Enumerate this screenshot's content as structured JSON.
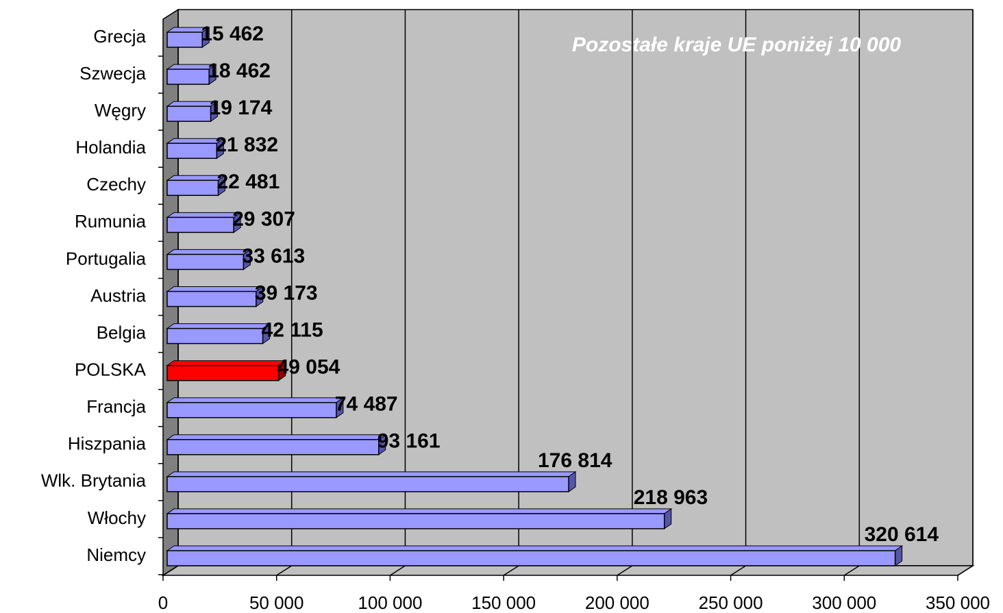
{
  "chart_data": {
    "type": "bar",
    "orientation": "horizontal",
    "annotation": "Pozostałe kraje UE poniżej 10 000",
    "categories": [
      "Grecja",
      "Szwecja",
      "Węgry",
      "Holandia",
      "Czechy",
      "Rumunia",
      "Portugalia",
      "Austria",
      "Belgia",
      "POLSKA",
      "Francja",
      "Hiszpania",
      "Wlk. Brytania",
      "Włochy",
      "Niemcy"
    ],
    "values": [
      15462,
      18462,
      19174,
      21832,
      22481,
      29307,
      33613,
      39173,
      42115,
      49054,
      74487,
      93161,
      176814,
      218963,
      320614
    ],
    "value_labels": [
      "15 462",
      "18 462",
      "19 174",
      "21 832",
      "22 481",
      "29 307",
      "33 613",
      "39 173",
      "42 115",
      "49 054",
      "74 487",
      "93 161",
      "176 814",
      "218 963",
      "320 614"
    ],
    "colors": [
      "#9999ff",
      "#9999ff",
      "#9999ff",
      "#9999ff",
      "#9999ff",
      "#9999ff",
      "#9999ff",
      "#9999ff",
      "#9999ff",
      "#ff0000",
      "#9999ff",
      "#9999ff",
      "#9999ff",
      "#9999ff",
      "#9999ff"
    ],
    "xlim": [
      0,
      350000
    ],
    "xticks": [
      0,
      {
        "value": 50000,
        "label": "50 000"
      },
      {
        "value": 100000,
        "label": "100 000"
      },
      {
        "value": 150000,
        "label": "150 000"
      },
      {
        "value": 200000,
        "label": "200 000"
      },
      {
        "value": 250000,
        "label": "250 000"
      },
      {
        "value": 300000,
        "label": "300 000"
      },
      {
        "value": 350000,
        "label": "350 000"
      }
    ],
    "grid": true
  }
}
